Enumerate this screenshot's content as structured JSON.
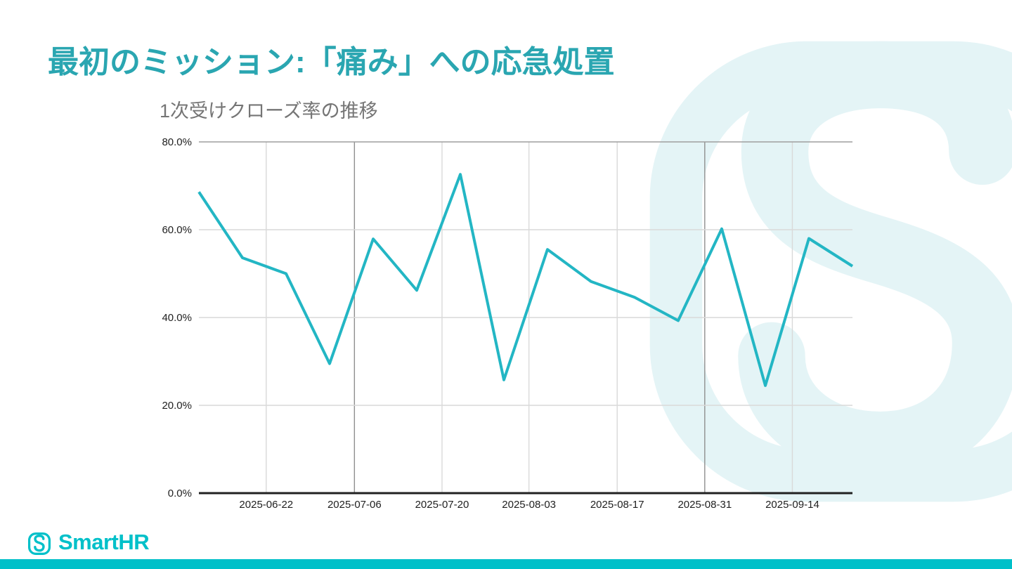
{
  "slide": {
    "title": "最初のミッション:「痛み」への応急処置"
  },
  "theme": {
    "accent_title": "#2aa6b1",
    "brand": "#00c0c9",
    "line": "#23b6c4",
    "watermark": "#e4f4f6",
    "grid_light": "#d9d9d9",
    "grid_dark": "#8f8f8f",
    "grid_top": "#9e9e9e",
    "axis": "#212121",
    "tick_label": "#212121",
    "chart_title_color": "#757575"
  },
  "chart_data": {
    "type": "line",
    "title": "1次受けクローズ率の推移",
    "series": [
      {
        "name": "1次受けクローズ率",
        "color": "#23b6c4",
        "values": [
          68.6,
          53.6,
          50.0,
          29.5,
          57.9,
          46.2,
          72.6,
          25.8,
          55.5,
          48.2,
          44.6,
          39.3,
          60.2,
          24.5,
          58.0,
          51.7
        ]
      }
    ],
    "x_tick_labels": [
      "2025-06-22",
      "2025-07-06",
      "2025-07-20",
      "2025-08-03",
      "2025-08-17",
      "2025-08-31",
      "2025-09-14"
    ],
    "x_tick_positions": [
      0.103,
      0.238,
      0.372,
      0.505,
      0.64,
      0.774,
      0.908
    ],
    "emphasized_x_ticks": [
      1,
      5
    ],
    "y_tick_labels": [
      "0.0%",
      "20.0%",
      "40.0%",
      "60.0%",
      "80.0%"
    ],
    "y_tick_values": [
      0,
      20,
      40,
      60,
      80
    ],
    "ylim": [
      0,
      80
    ],
    "grid": true,
    "legend": "none"
  },
  "footer": {
    "brand_name": "SmartHR"
  }
}
